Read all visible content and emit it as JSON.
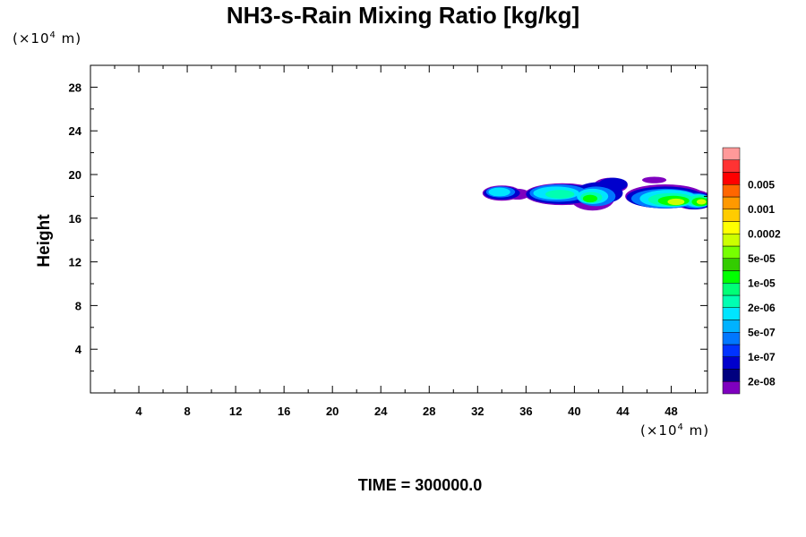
{
  "chart_data": {
    "type": "heatmap",
    "title": "NH3-s-Rain Mixing Ratio [kg/kg]",
    "ylabel": "Height",
    "x_unit_base": "(×10",
    "x_unit_exp": "4",
    "x_unit_suffix": " m)",
    "y_unit_base": "(×10",
    "y_unit_exp": "4",
    "y_unit_suffix": " m)",
    "time_label": "TIME = 300000.0",
    "xlim": [
      0,
      51
    ],
    "ylim": [
      0,
      30
    ],
    "x_ticks": [
      "4",
      "8",
      "12",
      "16",
      "20",
      "24",
      "28",
      "32",
      "36",
      "40",
      "44",
      "48"
    ],
    "y_ticks": [
      "4",
      "8",
      "12",
      "16",
      "20",
      "24",
      "28"
    ],
    "colorbar": {
      "colors": [
        "#7f00bf",
        "#00007f",
        "#0000cc",
        "#0033ff",
        "#0077ff",
        "#00b2ff",
        "#00e5ff",
        "#00ffb2",
        "#00ff77",
        "#00ff00",
        "#33cc00",
        "#77ff00",
        "#ccff00",
        "#ffff00",
        "#ffcc00",
        "#ff9900",
        "#ff6600",
        "#ff0000",
        "#ff3333",
        "#ff9999"
      ],
      "labels": [
        "2e-08",
        "1e-07",
        "5e-07",
        "2e-06",
        "1e-05",
        "5e-05",
        "0.0002",
        "0.001",
        "0.005"
      ]
    },
    "regions": [
      {
        "x": [
          32.5,
          36.5
        ],
        "y": [
          17.2,
          19.2
        ],
        "level": "1e-07 to 2e-06"
      },
      {
        "x": [
          36.5,
          44.0
        ],
        "y": [
          16.8,
          19.8
        ],
        "level": "1e-07 to 1e-05"
      },
      {
        "x": [
          44.5,
          51.0
        ],
        "y": [
          16.5,
          19.8
        ],
        "level": "1e-07 to 5e-05"
      }
    ]
  }
}
